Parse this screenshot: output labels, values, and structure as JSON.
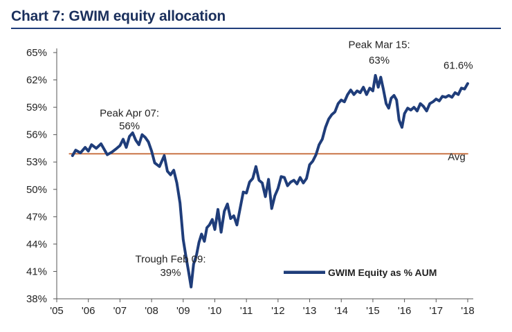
{
  "chart_data": {
    "type": "line",
    "title": "Chart 7: GWIM equity allocation",
    "xlabel": "",
    "ylabel": "",
    "xlim": [
      2005,
      2018
    ],
    "ylim": [
      38,
      65
    ],
    "y_ticks": [
      38,
      41,
      44,
      47,
      50,
      53,
      56,
      59,
      62,
      65
    ],
    "y_tick_labels": [
      "38%",
      "41%",
      "44%",
      "47%",
      "50%",
      "53%",
      "56%",
      "59%",
      "62%",
      "65%"
    ],
    "x_ticks": [
      2005,
      2006,
      2007,
      2008,
      2009,
      2010,
      2011,
      2012,
      2013,
      2014,
      2015,
      2016,
      2017,
      2018
    ],
    "x_tick_labels": [
      "'05",
      "'06",
      "'07",
      "'08",
      "'09",
      "'10",
      "'11",
      "'12",
      "'13",
      "'14",
      "'15",
      "'16",
      "'17",
      "'18"
    ],
    "grid": false,
    "legend_position": "bottom-right",
    "series": [
      {
        "name": "GWIM Equity as % AUM",
        "color": "#1f3d7a",
        "x": [
          2005.5,
          2005.6,
          2005.75,
          2005.9,
          2006.0,
          2006.1,
          2006.25,
          2006.4,
          2006.5,
          2006.6,
          2006.75,
          2006.9,
          2007.0,
          2007.1,
          2007.2,
          2007.3,
          2007.4,
          2007.5,
          2007.6,
          2007.7,
          2007.8,
          2007.9,
          2008.0,
          2008.1,
          2008.25,
          2008.4,
          2008.5,
          2008.6,
          2008.7,
          2008.8,
          2008.9,
          2009.0,
          2009.08,
          2009.17,
          2009.25,
          2009.33,
          2009.42,
          2009.5,
          2009.58,
          2009.67,
          2009.75,
          2009.83,
          2009.92,
          2010.0,
          2010.1,
          2010.2,
          2010.3,
          2010.4,
          2010.5,
          2010.6,
          2010.7,
          2010.8,
          2010.9,
          2011.0,
          2011.1,
          2011.2,
          2011.3,
          2011.4,
          2011.5,
          2011.6,
          2011.7,
          2011.8,
          2011.9,
          2012.0,
          2012.1,
          2012.2,
          2012.3,
          2012.4,
          2012.5,
          2012.6,
          2012.7,
          2012.8,
          2012.9,
          2013.0,
          2013.1,
          2013.2,
          2013.3,
          2013.4,
          2013.5,
          2013.6,
          2013.7,
          2013.8,
          2013.9,
          2014.0,
          2014.1,
          2014.2,
          2014.3,
          2014.4,
          2014.5,
          2014.6,
          2014.7,
          2014.8,
          2014.9,
          2015.0,
          2015.08,
          2015.17,
          2015.25,
          2015.33,
          2015.42,
          2015.5,
          2015.58,
          2015.67,
          2015.75,
          2015.83,
          2015.92,
          2016.0,
          2016.1,
          2016.2,
          2016.3,
          2016.4,
          2016.5,
          2016.6,
          2016.7,
          2016.8,
          2016.9,
          2017.0,
          2017.1,
          2017.2,
          2017.3,
          2017.4,
          2017.5,
          2017.6,
          2017.7,
          2017.8,
          2017.9,
          2018.0
        ],
        "values": [
          53.7,
          54.3,
          54.0,
          54.6,
          54.2,
          54.9,
          54.5,
          55.0,
          54.4,
          53.8,
          54.1,
          54.5,
          54.8,
          55.5,
          54.6,
          55.8,
          56.2,
          55.4,
          54.9,
          56.0,
          55.7,
          55.2,
          54.2,
          52.9,
          52.5,
          53.7,
          52.0,
          51.6,
          52.1,
          50.7,
          48.5,
          44.5,
          42.8,
          41.0,
          39.3,
          41.8,
          42.8,
          44.2,
          45.1,
          44.3,
          45.8,
          46.1,
          46.7,
          45.6,
          47.8,
          45.3,
          47.6,
          48.4,
          46.8,
          47.1,
          46.1,
          47.9,
          49.7,
          49.6,
          50.8,
          51.2,
          52.5,
          51.0,
          50.7,
          49.2,
          51.1,
          47.9,
          49.3,
          50.1,
          51.4,
          51.3,
          50.4,
          50.8,
          51.0,
          50.6,
          51.3,
          50.7,
          51.2,
          52.7,
          53.1,
          53.8,
          54.9,
          55.5,
          56.8,
          57.7,
          58.2,
          58.5,
          59.4,
          59.8,
          59.6,
          60.4,
          60.9,
          60.4,
          60.8,
          60.6,
          61.2,
          60.4,
          61.1,
          60.8,
          62.5,
          61.2,
          62.3,
          61.0,
          59.4,
          58.9,
          60.0,
          60.3,
          59.8,
          57.6,
          56.8,
          58.3,
          58.9,
          58.7,
          59.0,
          58.6,
          59.4,
          59.1,
          58.6,
          59.4,
          59.6,
          59.9,
          59.7,
          60.2,
          60.1,
          60.3,
          60.1,
          60.6,
          60.4,
          61.1,
          61.0,
          61.6
        ]
      },
      {
        "name": "Avg",
        "color": "#c2622e",
        "x": [
          2005.4,
          2018.0
        ],
        "values": [
          53.9,
          53.9
        ]
      }
    ],
    "annotations": [
      {
        "text": "Peak Apr 07:",
        "x": 2007.3,
        "y": 58.0
      },
      {
        "text": "56%",
        "x": 2007.3,
        "y": 56.6
      },
      {
        "text": "Peak Mar 15:",
        "x": 2015.2,
        "y": 65.5
      },
      {
        "text": "63%",
        "x": 2015.2,
        "y": 63.8
      },
      {
        "text": "61.6%",
        "x": 2017.7,
        "y": 63.2
      },
      {
        "text": "Avg",
        "x": 2017.65,
        "y": 53.2
      },
      {
        "text": "Trough Feb 09:",
        "x": 2008.6,
        "y": 42.0
      },
      {
        "text": "39%",
        "x": 2008.6,
        "y": 40.5
      }
    ]
  }
}
